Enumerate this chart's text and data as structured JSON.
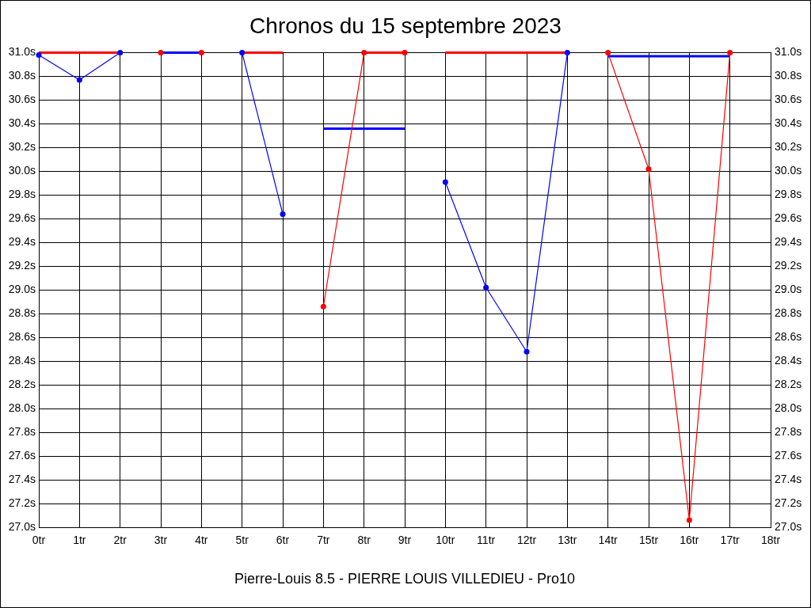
{
  "chart_data": {
    "type": "line",
    "title": "Chronos du 15 septembre 2023",
    "xlabel": "Pierre-Louis 8.5 - PIERRE LOUIS VILLEDIEU - Pro10",
    "xlim": [
      0,
      18
    ],
    "xticks": [
      {
        "value": 0,
        "label": "0tr"
      },
      {
        "value": 1,
        "label": "1tr"
      },
      {
        "value": 2,
        "label": "2tr"
      },
      {
        "value": 3,
        "label": "3tr"
      },
      {
        "value": 4,
        "label": "4tr"
      },
      {
        "value": 5,
        "label": "5tr"
      },
      {
        "value": 6,
        "label": "6tr"
      },
      {
        "value": 7,
        "label": "7tr"
      },
      {
        "value": 8,
        "label": "8tr"
      },
      {
        "value": 9,
        "label": "9tr"
      },
      {
        "value": 10,
        "label": "10tr"
      },
      {
        "value": 11,
        "label": "11tr"
      },
      {
        "value": 12,
        "label": "12tr"
      },
      {
        "value": 13,
        "label": "13tr"
      },
      {
        "value": 14,
        "label": "14tr"
      },
      {
        "value": 15,
        "label": "15tr"
      },
      {
        "value": 16,
        "label": "16tr"
      },
      {
        "value": 17,
        "label": "17tr"
      },
      {
        "value": 18,
        "label": "18tr"
      }
    ],
    "ylim": [
      27.0,
      31.0
    ],
    "yticks": [
      {
        "value": 27.0,
        "label": "27.0s"
      },
      {
        "value": 27.2,
        "label": "27.2s"
      },
      {
        "value": 27.4,
        "label": "27.4s"
      },
      {
        "value": 27.6,
        "label": "27.6s"
      },
      {
        "value": 27.8,
        "label": "27.8s"
      },
      {
        "value": 28.0,
        "label": "28.0s"
      },
      {
        "value": 28.2,
        "label": "28.2s"
      },
      {
        "value": 28.4,
        "label": "28.4s"
      },
      {
        "value": 28.6,
        "label": "28.6s"
      },
      {
        "value": 28.8,
        "label": "28.8s"
      },
      {
        "value": 29.0,
        "label": "29.0s"
      },
      {
        "value": 29.2,
        "label": "29.2s"
      },
      {
        "value": 29.4,
        "label": "29.4s"
      },
      {
        "value": 29.6,
        "label": "29.6s"
      },
      {
        "value": 29.8,
        "label": "29.8s"
      },
      {
        "value": 30.0,
        "label": "30.0s"
      },
      {
        "value": 30.2,
        "label": "30.2s"
      },
      {
        "value": 30.4,
        "label": "30.4s"
      },
      {
        "value": 30.6,
        "label": "30.6s"
      },
      {
        "value": 30.8,
        "label": "30.8s"
      },
      {
        "value": 31.0,
        "label": "31.0s"
      }
    ],
    "y2lim": [
      27.0,
      31.0
    ],
    "y2ticks": [
      {
        "value": 27.0,
        "label": "27.0s"
      },
      {
        "value": 27.2,
        "label": "27.2s"
      },
      {
        "value": 27.4,
        "label": "27.4s"
      },
      {
        "value": 27.6,
        "label": "27.6s"
      },
      {
        "value": 27.8,
        "label": "27.8s"
      },
      {
        "value": 28.0,
        "label": "28.0s"
      },
      {
        "value": 28.2,
        "label": "28.2s"
      },
      {
        "value": 28.4,
        "label": "28.4s"
      },
      {
        "value": 28.6,
        "label": "28.6s"
      },
      {
        "value": 28.8,
        "label": "28.8s"
      },
      {
        "value": 29.0,
        "label": "29.0s"
      },
      {
        "value": 29.2,
        "label": "29.2s"
      },
      {
        "value": 29.4,
        "label": "29.4s"
      },
      {
        "value": 29.6,
        "label": "29.6s"
      },
      {
        "value": 29.8,
        "label": "29.8s"
      },
      {
        "value": 30.0,
        "label": "30.0s"
      },
      {
        "value": 30.2,
        "label": "30.2s"
      },
      {
        "value": 30.4,
        "label": "30.4s"
      },
      {
        "value": 30.6,
        "label": "30.6s"
      },
      {
        "value": 30.8,
        "label": "30.8s"
      },
      {
        "value": 31.0,
        "label": "31.0s"
      }
    ],
    "grid": true,
    "series": [
      {
        "type": "line",
        "color": "#ff0000",
        "x": [
          0,
          2
        ],
        "values": [
          31.0,
          31.0
        ],
        "marker": "none"
      },
      {
        "type": "line",
        "color": "#ff0000",
        "x": [
          5,
          6
        ],
        "values": [
          31.0,
          31.0
        ],
        "marker": "none"
      },
      {
        "type": "line",
        "color": "#ff0000",
        "x": [
          10,
          13
        ],
        "values": [
          31.0,
          31.0
        ],
        "marker": "none"
      },
      {
        "type": "line",
        "color": "#0000ff",
        "x": [
          3,
          4
        ],
        "values": [
          31.0,
          31.0
        ],
        "marker": "none"
      },
      {
        "type": "line",
        "color": "#0000ff",
        "x": [
          7,
          9
        ],
        "values": [
          30.36,
          30.36
        ],
        "marker": "none"
      },
      {
        "type": "line",
        "color": "#0000ff",
        "x": [
          14,
          17
        ],
        "values": [
          30.97,
          30.97
        ],
        "marker": "none"
      },
      {
        "type": "line",
        "color": "#0000ff",
        "x": [
          0,
          1,
          2
        ],
        "values": [
          30.98,
          30.77,
          31.0
        ],
        "marker": "circle"
      },
      {
        "type": "line",
        "color": "#0000ff",
        "x": [
          5,
          6
        ],
        "values": [
          31.0,
          29.64
        ],
        "marker": "circle"
      },
      {
        "type": "line",
        "color": "#0000ff",
        "x": [
          10,
          11,
          12,
          13
        ],
        "values": [
          29.91,
          29.02,
          28.48,
          31.0
        ],
        "marker": "circle"
      },
      {
        "type": "scatter",
        "color": "#ff0000",
        "x": [
          3,
          4
        ],
        "values": [
          31.0,
          31.0
        ],
        "marker": "circle"
      },
      {
        "type": "line",
        "color": "#ff0000",
        "x": [
          7,
          8,
          9
        ],
        "values": [
          28.86,
          31.0,
          31.0
        ],
        "marker": "circle"
      },
      {
        "type": "line",
        "color": "#ff0000",
        "x": [
          14,
          15,
          16,
          17
        ],
        "values": [
          31.0,
          30.02,
          27.06,
          31.0
        ],
        "marker": "circle"
      }
    ]
  }
}
